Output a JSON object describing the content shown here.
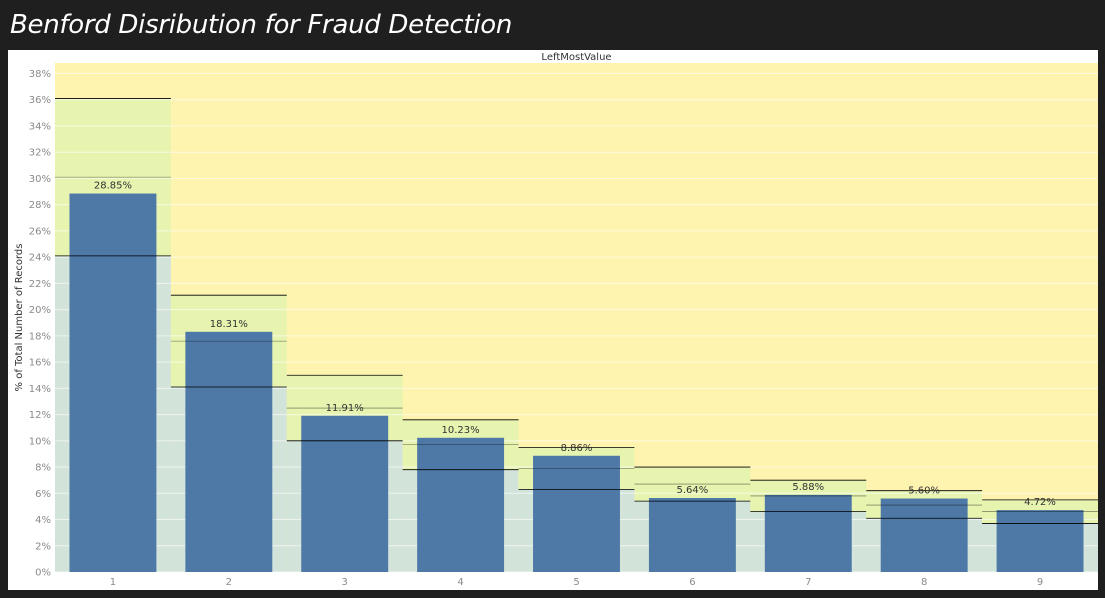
{
  "dashboard": {
    "title": "Benford Disribution for Fraud Detection"
  },
  "colors": {
    "background": "#1f1f1f",
    "bar": "#4e79a7",
    "band_outside": "#fff3b0",
    "band_tolerance": "#e6f4b0",
    "band_expected": "#d2e3da",
    "reference_line": "#000000",
    "gridline": "#ffffff"
  },
  "chart_data": {
    "type": "bar",
    "title": "LeftMostValue",
    "xlabel": "",
    "ylabel": "% of Total Number of Records",
    "ylim": [
      0,
      38.8
    ],
    "yticks": [
      "0%",
      "2%",
      "4%",
      "6%",
      "8%",
      "10%",
      "12%",
      "14%",
      "16%",
      "18%",
      "20%",
      "22%",
      "24%",
      "26%",
      "28%",
      "30%",
      "32%",
      "34%",
      "36%",
      "38%"
    ],
    "ytick_values": [
      0,
      2,
      4,
      6,
      8,
      10,
      12,
      14,
      16,
      18,
      20,
      22,
      24,
      26,
      28,
      30,
      32,
      34,
      36,
      38
    ],
    "categories": [
      "1",
      "2",
      "3",
      "4",
      "5",
      "6",
      "7",
      "8",
      "9"
    ],
    "values": [
      28.85,
      18.31,
      11.91,
      10.23,
      8.86,
      5.64,
      5.88,
      5.6,
      4.72
    ],
    "data_labels": [
      "28.85%",
      "18.31%",
      "11.91%",
      "10.23%",
      "8.86%",
      "5.64%",
      "5.88%",
      "5.60%",
      "4.72%"
    ],
    "bands": [
      {
        "category": "1",
        "lower": 24.1,
        "expected": 30.1,
        "upper": 36.1
      },
      {
        "category": "2",
        "lower": 14.1,
        "expected": 17.6,
        "upper": 21.1
      },
      {
        "category": "3",
        "lower": 10.0,
        "expected": 12.5,
        "upper": 15.0
      },
      {
        "category": "4",
        "lower": 7.8,
        "expected": 9.7,
        "upper": 11.6
      },
      {
        "category": "5",
        "lower": 6.3,
        "expected": 7.9,
        "upper": 9.5
      },
      {
        "category": "6",
        "lower": 5.4,
        "expected": 6.7,
        "upper": 8.0
      },
      {
        "category": "7",
        "lower": 4.6,
        "expected": 5.8,
        "upper": 7.0
      },
      {
        "category": "8",
        "lower": 4.1,
        "expected": 5.1,
        "upper": 6.2
      },
      {
        "category": "9",
        "lower": 3.7,
        "expected": 4.6,
        "upper": 5.5
      }
    ],
    "grid": true,
    "legend": "none"
  }
}
